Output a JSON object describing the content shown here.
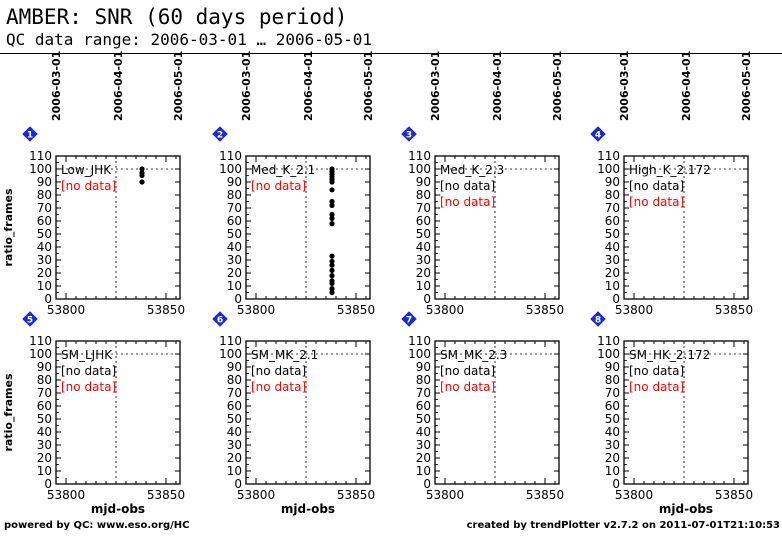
{
  "header": {
    "title": "AMBER: SNR (60 days period)",
    "subtitle": "QC data range: 2006-03-01 … 2006-05-01"
  },
  "footer": {
    "left": "powered by QC: www.eso.org/HC",
    "right": "created by trendPlotter v2.7.2 on 2011-07-01T21:10:53"
  },
  "colors": {
    "nodata": "#ff0000",
    "marker": "#1b2ad1",
    "points": "#000000"
  },
  "chart_data": {
    "type": "scatter",
    "xlabel": "mjd-obs",
    "ylabel": "ratio_frames",
    "xlim": [
      53795,
      53857
    ],
    "ylim": [
      0,
      110
    ],
    "xticks": [
      53800,
      53850
    ],
    "xminor_step": 5,
    "yticks": [
      0,
      10,
      20,
      30,
      40,
      50,
      60,
      70,
      80,
      90,
      100,
      110
    ],
    "ref_line_y": 100,
    "ref_line_x": 53825,
    "date_labels": [
      {
        "x": 53795,
        "label": "2006-03-01"
      },
      {
        "x": 53826,
        "label": "2006-04-01"
      },
      {
        "x": 53856,
        "label": "2006-05-01"
      }
    ],
    "panels": [
      {
        "id": "1",
        "label": "Low_JHK",
        "notes": [
          {
            "text": "[no data]",
            "color": "red"
          }
        ],
        "points": [
          [
            53838,
            100
          ],
          [
            53838,
            97
          ],
          [
            53838,
            95
          ],
          [
            53838,
            90
          ]
        ]
      },
      {
        "id": "2",
        "label": "Med_K_2.1",
        "notes": [
          {
            "text": "[no data]",
            "color": "red"
          }
        ],
        "points": [
          [
            53838,
            100
          ],
          [
            53838,
            98
          ],
          [
            53838,
            96
          ],
          [
            53838,
            94
          ],
          [
            53838,
            92
          ],
          [
            53838,
            90
          ],
          [
            53838,
            84
          ],
          [
            53838,
            75
          ],
          [
            53838,
            72
          ],
          [
            53838,
            65
          ],
          [
            53838,
            62
          ],
          [
            53838,
            58
          ],
          [
            53838,
            33
          ],
          [
            53838,
            29
          ],
          [
            53838,
            26
          ],
          [
            53838,
            22
          ],
          [
            53838,
            18
          ],
          [
            53838,
            14
          ],
          [
            53838,
            12
          ],
          [
            53838,
            8
          ],
          [
            53838,
            5
          ]
        ]
      },
      {
        "id": "3",
        "label": "Med_K_2.3",
        "notes": [
          {
            "text": "[no data]",
            "color": "black"
          },
          {
            "text": "[no data]",
            "color": "red"
          }
        ],
        "points": []
      },
      {
        "id": "4",
        "label": "High_K_2.172",
        "notes": [
          {
            "text": "[no data]",
            "color": "black"
          },
          {
            "text": "[no data]",
            "color": "red"
          }
        ],
        "points": []
      },
      {
        "id": "5",
        "label": "SM_LJHK",
        "notes": [
          {
            "text": "[no data]",
            "color": "black"
          },
          {
            "text": "[no data]",
            "color": "red"
          }
        ],
        "points": []
      },
      {
        "id": "6",
        "label": "SM_MK_2.1",
        "notes": [
          {
            "text": "[no data]",
            "color": "black"
          },
          {
            "text": "[no data]",
            "color": "red"
          }
        ],
        "points": []
      },
      {
        "id": "7",
        "label": "SM_MK_2.3",
        "notes": [
          {
            "text": "[no data]",
            "color": "black"
          },
          {
            "text": "[no data]",
            "color": "red"
          }
        ],
        "points": []
      },
      {
        "id": "8",
        "label": "SM_HK_2.172",
        "notes": [
          {
            "text": "[no data]",
            "color": "black"
          },
          {
            "text": "[no data]",
            "color": "red"
          }
        ],
        "points": []
      }
    ]
  }
}
